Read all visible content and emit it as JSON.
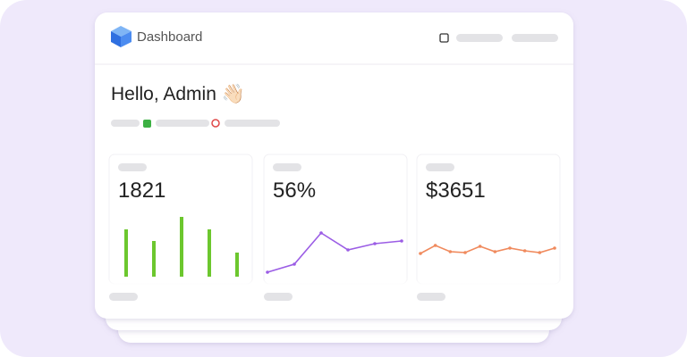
{
  "header": {
    "title": "Dashboard"
  },
  "greeting": "Hello, Admin 👋🏻",
  "cards": [
    {
      "value": "1821",
      "chart": {
        "type": "bar",
        "color": "#6cc72e",
        "values": [
          53,
          40,
          67,
          53,
          27
        ]
      }
    },
    {
      "value": "56%",
      "chart": {
        "type": "line",
        "color": "#9b5de5",
        "values": [
          5,
          14,
          49,
          30,
          37,
          40
        ]
      }
    },
    {
      "value": "$3651",
      "chart": {
        "type": "line",
        "color": "#f08a5d",
        "values": [
          26,
          35,
          28,
          27,
          34,
          28,
          32,
          29,
          27,
          32
        ]
      }
    }
  ]
}
